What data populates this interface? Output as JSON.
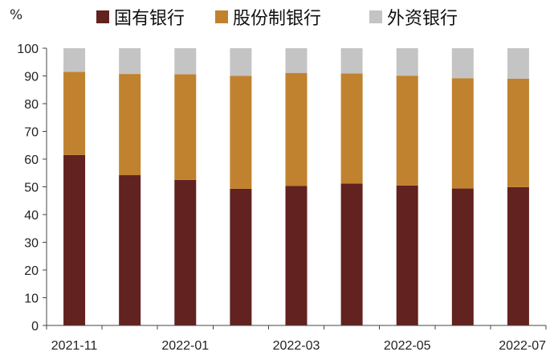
{
  "chart_data": {
    "type": "bar",
    "stacked": true,
    "ylabel": "%",
    "ylim": [
      0,
      100
    ],
    "yticks": [
      0,
      10,
      20,
      30,
      40,
      50,
      60,
      70,
      80,
      90,
      100
    ],
    "categories": [
      "2021-11",
      "2021-12",
      "2022-01",
      "2022-02",
      "2022-03",
      "2022-04",
      "2022-05",
      "2022-06",
      "2022-07"
    ],
    "xtick_labels": [
      "2021-11",
      "",
      "2022-01",
      "",
      "2022-03",
      "",
      "2022-05",
      "",
      "2022-07"
    ],
    "legend_position": "top",
    "grid": false,
    "series": [
      {
        "name": "国有银行",
        "color": "#62221f",
        "values": [
          61.5,
          54.2,
          52.5,
          49.3,
          50.3,
          51.2,
          50.5,
          49.4,
          49.9
        ]
      },
      {
        "name": "股份制银行",
        "color": "#c0822f",
        "values": [
          30,
          36.5,
          38.1,
          40.7,
          40.8,
          39.7,
          39.6,
          39.8,
          39.1
        ]
      },
      {
        "name": "外资银行",
        "color": "#c4c4c4",
        "values": [
          8.5,
          9.3,
          9.4,
          10,
          8.9,
          9.1,
          9.9,
          10.8,
          11
        ]
      }
    ]
  }
}
